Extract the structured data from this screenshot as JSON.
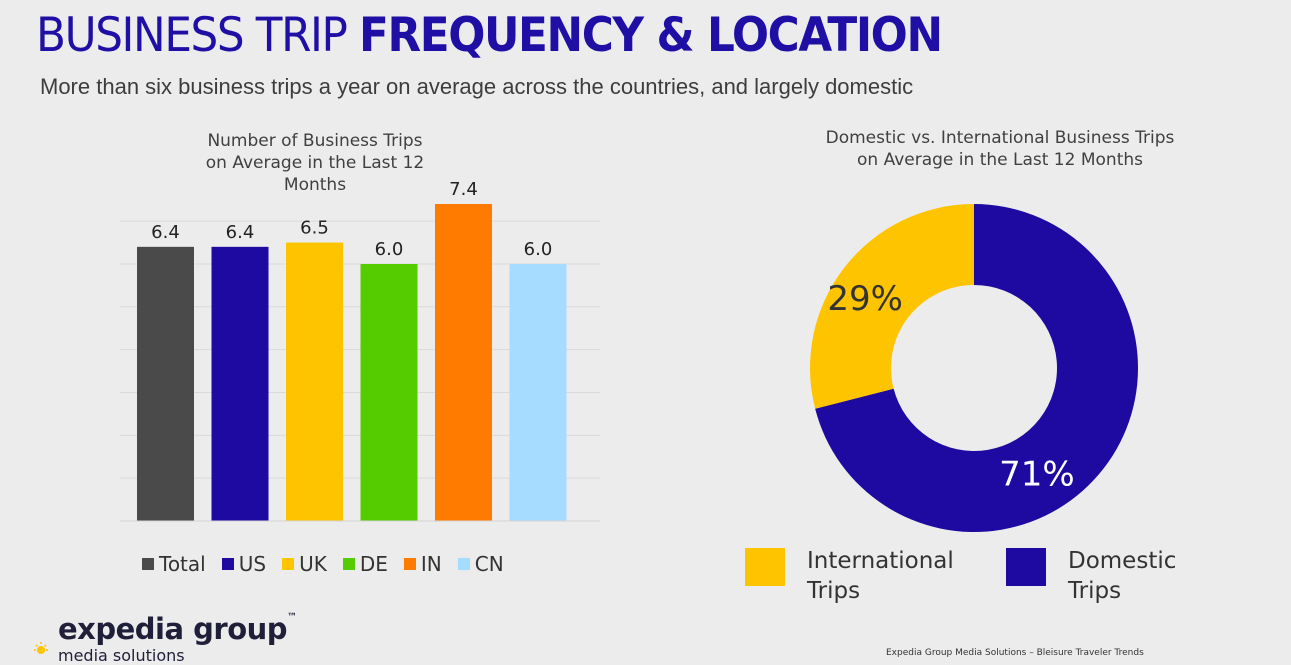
{
  "header": {
    "title_part1": "BUSINESS TRIP ",
    "title_part2": "FREQUENCY & LOCATION",
    "subtitle": "More than six business trips a year on average across the countries, and largely domestic"
  },
  "chart_data": [
    {
      "type": "bar",
      "title": "Number of Business Trips on Average in the Last 12 Months",
      "title_lines": [
        "Number of Business Trips",
        "on Average in the Last 12",
        "Months"
      ],
      "categories": [
        "Total",
        "US",
        "UK",
        "DE",
        "IN",
        "CN"
      ],
      "values": [
        6.4,
        6.4,
        6.5,
        6.0,
        7.4,
        6.0
      ],
      "value_labels": [
        "6.4",
        "6.4",
        "6.5",
        "6.0",
        "7.4",
        "6.0"
      ],
      "colors": [
        "#4a4a4a",
        "#1e0aa0",
        "#ffc400",
        "#55cc00",
        "#ff7b00",
        "#a6dcff"
      ],
      "ylim": [
        0,
        7.4
      ],
      "grid": true,
      "legend": "bottom"
    },
    {
      "type": "pie",
      "style": "donut",
      "title": "Domestic vs. International Business Trips on Average in the Last 12 Months",
      "title_lines": [
        "Domestic vs. International Business Trips",
        "on Average in the Last 12 Months"
      ],
      "slices": [
        {
          "label": "Domestic Trips",
          "legend_lines": [
            "Domestic",
            "Trips"
          ],
          "value": 71,
          "display": "71%",
          "color": "#1e0aa0"
        },
        {
          "label": "International Trips",
          "legend_lines": [
            "International",
            "Trips"
          ],
          "value": 29,
          "display": "29%",
          "color": "#ffc400"
        }
      ],
      "legend": "bottom"
    }
  ],
  "branding": {
    "logo": "expedia group",
    "logo_tm": "™",
    "logo_sub": "media solutions",
    "footer": "Expedia Group Media Solutions – Bleisure Traveler Trends"
  }
}
